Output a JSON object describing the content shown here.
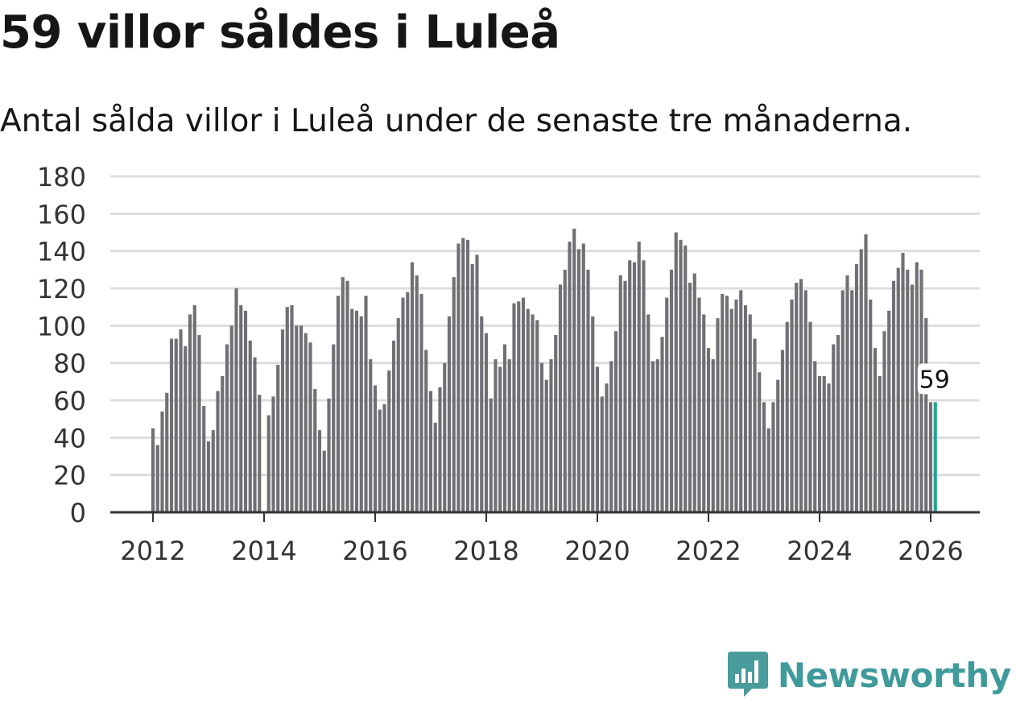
{
  "header": {
    "title": "59 villor såldes i Luleå",
    "subtitle": "Antal sålda villor i Luleå under de senaste tre månaderna."
  },
  "brand": {
    "name": "Newsworthy",
    "icon": "bar-chart-speech-icon",
    "color": "#4a9b9c"
  },
  "colors": {
    "bar": "#707074",
    "highlight": "#1fa596",
    "grid": "#dddddd",
    "axis": "#333333"
  },
  "chart_data": {
    "type": "bar",
    "title": "59 villor såldes i Luleå",
    "subtitle": "Antal sålda villor i Luleå under de senaste tre månaderna.",
    "xlabel": "",
    "ylabel": "",
    "ylim": [
      0,
      180
    ],
    "yticks": [
      0,
      20,
      40,
      60,
      80,
      100,
      120,
      140,
      160,
      180
    ],
    "xticks": [
      "2012",
      "2014",
      "2016",
      "2018",
      "2020",
      "2022",
      "2024",
      "2026"
    ],
    "grid": true,
    "start": "2012-01",
    "end": "2026-02",
    "period": "monthly",
    "values": [
      45,
      36,
      54,
      64,
      93,
      93,
      98,
      89,
      106,
      111,
      95,
      57,
      38,
      44,
      65,
      73,
      90,
      100,
      120,
      111,
      108,
      92,
      83,
      63,
      0,
      52,
      62,
      79,
      98,
      110,
      111,
      100,
      100,
      96,
      91,
      66,
      44,
      33,
      61,
      90,
      116,
      126,
      124,
      109,
      108,
      105,
      116,
      82,
      68,
      55,
      58,
      76,
      92,
      104,
      115,
      118,
      134,
      127,
      117,
      87,
      65,
      48,
      67,
      80,
      105,
      126,
      144,
      147,
      146,
      133,
      138,
      105,
      96,
      61,
      82,
      78,
      90,
      82,
      112,
      113,
      115,
      109,
      106,
      103,
      80,
      71,
      82,
      95,
      122,
      130,
      145,
      152,
      141,
      144,
      130,
      105,
      78,
      62,
      69,
      81,
      97,
      127,
      124,
      135,
      134,
      145,
      135,
      106,
      81,
      82,
      94,
      115,
      130,
      150,
      146,
      143,
      123,
      128,
      115,
      106,
      88,
      82,
      104,
      117,
      116,
      109,
      114,
      119,
      111,
      106,
      93,
      75,
      59,
      45,
      59,
      71,
      87,
      102,
      114,
      123,
      125,
      119,
      102,
      81,
      73,
      73,
      69,
      90,
      95,
      119,
      127,
      119,
      133,
      141,
      149,
      114,
      88,
      73,
      97,
      108,
      124,
      131,
      139,
      130,
      122,
      134,
      130,
      104,
      59,
      59
    ],
    "highlight_last": {
      "value": 59,
      "label": "59"
    }
  }
}
